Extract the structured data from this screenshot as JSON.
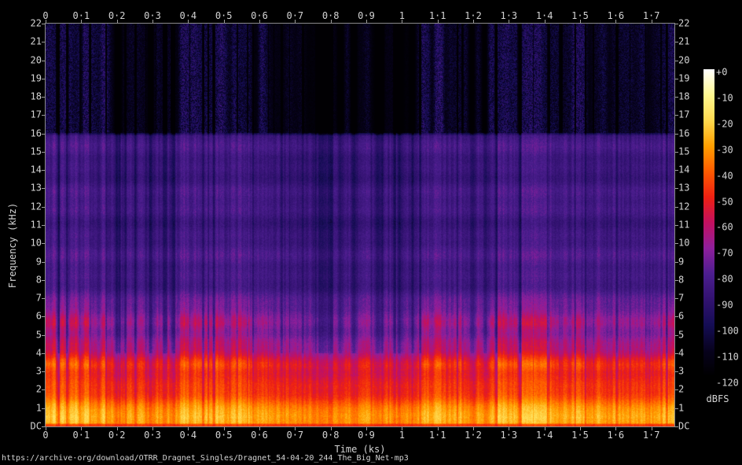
{
  "page": {
    "background": "#000000",
    "text_color": "#d4d4d4",
    "tick_color": "#9c9c9c",
    "border_color": "#8a8a8a"
  },
  "axes": {
    "time": {
      "label": "Time (ks)",
      "tick_labels": [
        "0",
        "0·1",
        "0·2",
        "0·3",
        "0·4",
        "0·5",
        "0·6",
        "0·7",
        "0·8",
        "0·9",
        "1",
        "1·1",
        "1·2",
        "1·3",
        "1·4",
        "1·5",
        "1·6",
        "1·7"
      ]
    },
    "frequency": {
      "label": "Frequency (kHz)",
      "tick_labels": [
        "22",
        "21",
        "20",
        "19",
        "18",
        "17",
        "16",
        "15",
        "14",
        "13",
        "12",
        "11",
        "10",
        "9",
        "8",
        "7",
        "6",
        "5",
        "4",
        "3",
        "2",
        "1",
        "DC"
      ]
    },
    "level": {
      "unit": "dBFS",
      "tick_labels": [
        "+0",
        "-10",
        "-20",
        "-30",
        "-40",
        "-50",
        "-60",
        "-70",
        "-80",
        "-90",
        "-100",
        "-110",
        "-120"
      ]
    }
  },
  "footer": {
    "source_url": "https://archive·org/download/OTRR_Dragnet_Singles/Dragnet_54-04-20_244_The_Big_Net·mp3"
  },
  "chart_data": {
    "type": "heatmap",
    "subtype": "audio-spectrogram",
    "title": "",
    "xlabel": "Time (ks)",
    "ylabel": "Frequency (kHz)",
    "zlabel": "dBFS",
    "x_range_ks": [
      0,
      1.765
    ],
    "x_tick_step_ks": 0.1,
    "y_range_khz": [
      0,
      22.05
    ],
    "y_tick_step_khz": 1,
    "z_range_db": [
      -120,
      0
    ],
    "z_tick_step_db": 10,
    "legend_position": "right-colorbar",
    "grid": false,
    "mp3_lowpass_khz": 16,
    "source_url": "https://archive·org/download/OTRR_Dragnet_Singles/Dragnet_54-04-20_244_The_Big_Net·mp3",
    "palette_stops": [
      [
        0.0,
        "#000000"
      ],
      [
        0.08,
        "#07021c"
      ],
      [
        0.167,
        "#150d55"
      ],
      [
        0.25,
        "#321270"
      ],
      [
        0.333,
        "#4c1e8f"
      ],
      [
        0.417,
        "#8f1f9c"
      ],
      [
        0.5,
        "#c31060"
      ],
      [
        0.583,
        "#ee2012"
      ],
      [
        0.667,
        "#ff5b00"
      ],
      [
        0.75,
        "#ff9f00"
      ],
      [
        0.833,
        "#ffd94e"
      ],
      [
        0.917,
        "#fff891"
      ],
      [
        1.0,
        "#ffffff"
      ]
    ],
    "speech_level_db_by_khz": [
      [
        0.0,
        -46
      ],
      [
        0.1,
        -46
      ],
      [
        0.18,
        -26
      ],
      [
        0.5,
        -22
      ],
      [
        1.0,
        -28
      ],
      [
        1.6,
        -34
      ],
      [
        2.2,
        -41
      ],
      [
        3.0,
        -44
      ],
      [
        3.4,
        -41
      ],
      [
        4.2,
        -56
      ],
      [
        5.0,
        -62
      ],
      [
        5.6,
        -58
      ],
      [
        6.2,
        -68
      ],
      [
        7.0,
        -76
      ],
      [
        8.0,
        -80
      ],
      [
        10.0,
        -82
      ],
      [
        13.0,
        -82
      ],
      [
        15.9,
        -83
      ],
      [
        16.1,
        -96
      ],
      [
        22.05,
        -99
      ]
    ],
    "silence_level_db_by_khz": [
      [
        0.0,
        -50
      ],
      [
        0.1,
        -52
      ],
      [
        0.18,
        -38
      ],
      [
        0.6,
        -36
      ],
      [
        1.2,
        -44
      ],
      [
        2.0,
        -52
      ],
      [
        3.0,
        -60
      ],
      [
        4.0,
        -70
      ],
      [
        5.0,
        -77
      ],
      [
        6.0,
        -82
      ],
      [
        8.0,
        -87
      ],
      [
        12.0,
        -90
      ],
      [
        15.9,
        -90
      ],
      [
        16.1,
        -117
      ],
      [
        22.05,
        -118
      ]
    ]
  }
}
